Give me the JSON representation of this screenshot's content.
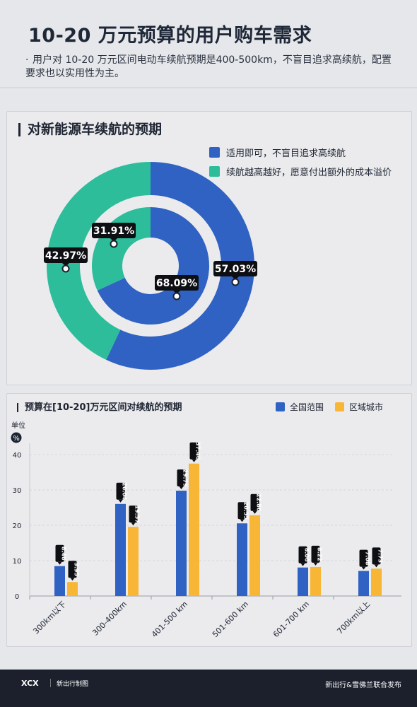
{
  "title": "10-20 万元预算的用户购车需求",
  "subtitle": "用户对 10-20 万元区间电动车续航预期是400-500km，不盲目追求高续航，配置要求也以实用性为主。",
  "colors": {
    "blue": "#2f62c2",
    "teal": "#2dbd9a",
    "orange": "#f7b636",
    "dark": "#1b202c"
  },
  "chart_data": [
    {
      "type": "pie",
      "title": "对新能源车续航的预期",
      "legend": [
        "适用即可，不盲目追求高续航",
        "续航越高越好，愿意付出额外的成本溢价"
      ],
      "rings": [
        {
          "ring": "outer",
          "values": [
            57.03,
            42.97
          ],
          "labels": [
            "57.03%",
            "42.97%"
          ]
        },
        {
          "ring": "inner",
          "values": [
            68.09,
            31.91
          ],
          "labels": [
            "68.09%",
            "31.91%"
          ]
        }
      ]
    },
    {
      "type": "bar",
      "title": "预算在[10-20]万元区间对续航的预期",
      "unit_label": "单位",
      "unit": "%",
      "categories": [
        "300km以下",
        "300-400km",
        "401-500 km",
        "501-600 km",
        "601-700 km",
        "700km以上"
      ],
      "series": [
        {
          "name": "全国范围",
          "values": [
            8.46,
            26.04,
            29.79,
            20.55,
            8.06,
            7.08
          ]
        },
        {
          "name": "区域城市",
          "values": [
            3.95,
            19.57,
            37.46,
            22.86,
            8.22,
            7.73
          ]
        }
      ],
      "ylim": [
        0,
        40
      ],
      "yticks": [
        0,
        10,
        20,
        30,
        40
      ]
    }
  ],
  "footer": {
    "logo": "XCX",
    "brand": "新出行制图",
    "publisher": "新出行&雪佛兰联合发布"
  }
}
